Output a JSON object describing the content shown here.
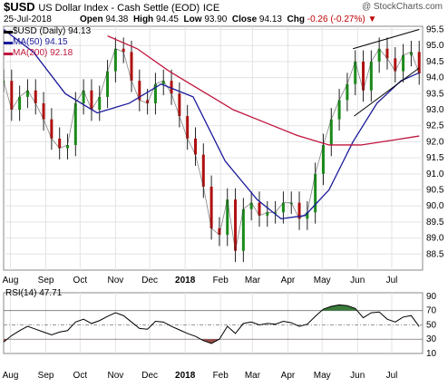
{
  "header": {
    "symbol": "$USD",
    "name": "US Dollar Index - Cash Settle (EOD)",
    "exchange": "ICE",
    "watermark": "@ StockCharts.com",
    "date": "25-Jul-2018",
    "open_label": "Open",
    "open": "94.38",
    "high_label": "High",
    "high": "94.45",
    "low_label": "Low",
    "low": "93.90",
    "close_label": "Close",
    "close": "94.13",
    "chg_label": "Chg",
    "chg": "-0.26 (-0.27%)"
  },
  "legend": [
    {
      "text": "$USD (Daily) 94.13",
      "color": "#000000"
    },
    {
      "text": "MA(50) 94.15",
      "color": "#1a1a9a"
    },
    {
      "text": "MA(200) 92.18",
      "color": "#c0143c"
    }
  ],
  "rsi_label": "RSI(14) 47.71",
  "chart_data": [
    {
      "type": "line",
      "title": "$USD US Dollar Index - Cash Settle (EOD) ICE",
      "x_ticks": [
        "Aug",
        "Sep",
        "Oct",
        "Nov",
        "Dec",
        "2018",
        "Feb",
        "Mar",
        "Apr",
        "May",
        "Jun",
        "Jul"
      ],
      "ylim": [
        88.0,
        95.6
      ],
      "y_ticks": [
        88.5,
        89.0,
        89.5,
        90.0,
        90.5,
        91.0,
        91.5,
        92.0,
        92.5,
        93.0,
        93.5,
        94.0,
        94.5,
        95.0,
        95.5
      ],
      "y_axis_side": "right",
      "grid": true,
      "series": [
        {
          "name": "$USD (Daily)",
          "style": "candlestick-approx",
          "x": [
            "2017-07-26",
            "2017-08-02",
            "2017-08-09",
            "2017-08-16",
            "2017-08-23",
            "2017-08-30",
            "2017-09-06",
            "2017-09-13",
            "2017-09-20",
            "2017-09-27",
            "2017-10-04",
            "2017-10-11",
            "2017-10-18",
            "2017-10-25",
            "2017-11-01",
            "2017-11-08",
            "2017-11-15",
            "2017-11-22",
            "2017-11-29",
            "2017-12-06",
            "2017-12-13",
            "2017-12-20",
            "2017-12-27",
            "2018-01-03",
            "2018-01-10",
            "2018-01-17",
            "2018-01-24",
            "2018-01-31",
            "2018-02-07",
            "2018-02-14",
            "2018-02-21",
            "2018-02-28",
            "2018-03-07",
            "2018-03-14",
            "2018-03-21",
            "2018-03-28",
            "2018-04-04",
            "2018-04-11",
            "2018-04-18",
            "2018-04-25",
            "2018-05-02",
            "2018-05-09",
            "2018-05-16",
            "2018-05-23",
            "2018-05-30",
            "2018-06-06",
            "2018-06-13",
            "2018-06-20",
            "2018-06-27",
            "2018-07-04",
            "2018-07-11",
            "2018-07-18",
            "2018-07-25"
          ],
          "values": [
            93.9,
            93.0,
            93.4,
            93.6,
            93.2,
            92.7,
            92.1,
            91.8,
            91.9,
            93.2,
            93.6,
            93.0,
            93.4,
            94.2,
            94.9,
            94.8,
            93.9,
            93.3,
            93.2,
            93.8,
            93.9,
            93.5,
            92.8,
            92.1,
            91.6,
            90.6,
            89.3,
            89.1,
            90.2,
            88.6,
            89.9,
            90.1,
            89.7,
            89.8,
            89.8,
            90.1,
            90.1,
            89.6,
            89.8,
            91.0,
            91.9,
            92.7,
            93.3,
            93.8,
            94.5,
            93.6,
            94.5,
            94.9,
            94.6,
            94.2,
            94.7,
            94.8,
            94.13
          ]
        },
        {
          "name": "MA(50)",
          "x": [
            "2017-07-26",
            "2017-08-21",
            "2017-09-18",
            "2017-10-16",
            "2017-11-13",
            "2017-12-11",
            "2018-01-08",
            "2018-02-05",
            "2018-03-05",
            "2018-03-26",
            "2018-04-16",
            "2018-05-07",
            "2018-05-28",
            "2018-06-18",
            "2018-07-09",
            "2018-07-25"
          ],
          "values": [
            95.5,
            94.8,
            93.5,
            92.9,
            93.2,
            93.8,
            93.4,
            91.4,
            90.2,
            89.6,
            89.7,
            90.5,
            92.0,
            93.2,
            93.9,
            94.15
          ]
        },
        {
          "name": "MA(200)",
          "x": [
            "2017-10-25",
            "2017-11-20",
            "2017-12-18",
            "2018-01-15",
            "2018-02-12",
            "2018-03-12",
            "2018-04-09",
            "2018-05-07",
            "2018-06-04",
            "2018-07-02",
            "2018-07-25"
          ],
          "values": [
            95.3,
            94.9,
            94.2,
            93.6,
            93.0,
            92.6,
            92.2,
            91.9,
            91.9,
            92.05,
            92.18
          ]
        }
      ],
      "annotations": [
        {
          "type": "trendline",
          "x": [
            "2018-05-28",
            "2018-07-25"
          ],
          "values": [
            94.9,
            95.5
          ]
        },
        {
          "type": "trendline",
          "x": [
            "2018-05-29",
            "2018-07-25"
          ],
          "values": [
            92.8,
            94.3
          ]
        }
      ]
    },
    {
      "type": "line",
      "title": "RSI(14) 47.71",
      "ylim": [
        10,
        95
      ],
      "y_ticks": [
        10,
        30,
        50,
        70,
        90
      ],
      "y_axis_side": "right",
      "reference_lines": [
        70,
        50,
        30
      ],
      "series": [
        {
          "name": "RSI(14)",
          "x": [
            "2017-07-26",
            "2017-08-02",
            "2017-08-09",
            "2017-08-16",
            "2017-08-23",
            "2017-08-30",
            "2017-09-06",
            "2017-09-13",
            "2017-09-20",
            "2017-09-27",
            "2017-10-04",
            "2017-10-11",
            "2017-10-18",
            "2017-10-25",
            "2017-11-01",
            "2017-11-08",
            "2017-11-15",
            "2017-11-22",
            "2017-11-29",
            "2017-12-06",
            "2017-12-13",
            "2017-12-20",
            "2017-12-27",
            "2018-01-03",
            "2018-01-10",
            "2018-01-17",
            "2018-01-24",
            "2018-01-31",
            "2018-02-07",
            "2018-02-14",
            "2018-02-21",
            "2018-02-28",
            "2018-03-07",
            "2018-03-14",
            "2018-03-21",
            "2018-03-28",
            "2018-04-04",
            "2018-04-11",
            "2018-04-18",
            "2018-04-25",
            "2018-05-02",
            "2018-05-09",
            "2018-05-16",
            "2018-05-23",
            "2018-05-30",
            "2018-06-06",
            "2018-06-13",
            "2018-06-20",
            "2018-06-27",
            "2018-07-04",
            "2018-07-11",
            "2018-07-18",
            "2018-07-25"
          ],
          "values": [
            26,
            35,
            42,
            48,
            44,
            40,
            36,
            40,
            42,
            54,
            58,
            52,
            56,
            62,
            67,
            63,
            54,
            45,
            44,
            55,
            54,
            48,
            43,
            38,
            34,
            28,
            24,
            30,
            48,
            38,
            52,
            54,
            50,
            52,
            51,
            55,
            53,
            48,
            51,
            62,
            72,
            76,
            78,
            77,
            73,
            60,
            67,
            68,
            58,
            54,
            61,
            63,
            47.71
          ]
        }
      ]
    }
  ]
}
